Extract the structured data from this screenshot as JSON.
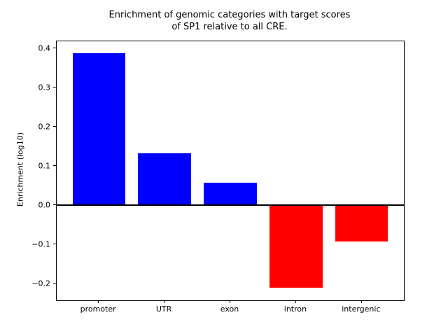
{
  "chart_data": {
    "type": "bar",
    "title": "Enrichment of genomic categories with target scores of SP1 relative to all CRE.",
    "title_lines": [
      "Enrichment of genomic categories with target scores",
      "of SP1 relative to all CRE."
    ],
    "xlabel": "",
    "ylabel": "Enrichment (log10)",
    "categories": [
      "promoter",
      "UTR",
      "exon",
      "intron",
      "intergenic"
    ],
    "values": [
      0.388,
      0.133,
      0.057,
      -0.21,
      -0.092
    ],
    "bar_colors": [
      "#0000ff",
      "#0000ff",
      "#0000ff",
      "#ff0000",
      "#ff0000"
    ],
    "positive_color": "#0000ff",
    "negative_color": "#ff0000",
    "bar_width": 0.8,
    "x_positions": [
      0,
      1,
      2,
      3,
      4
    ],
    "xlim": [
      -0.64,
      4.64
    ],
    "ylim": [
      -0.242,
      0.418
    ],
    "yticks": [
      0.4,
      0.3,
      0.2,
      0.1,
      0.0,
      -0.1,
      -0.2
    ],
    "ytick_labels": [
      "0.4",
      "0.3",
      "0.2",
      "0.1",
      "0.0",
      "−0.1",
      "−0.2"
    ],
    "zero_line": true,
    "grid": false,
    "legend": null,
    "axis_color": "#000000",
    "background_color": "#ffffff"
  }
}
